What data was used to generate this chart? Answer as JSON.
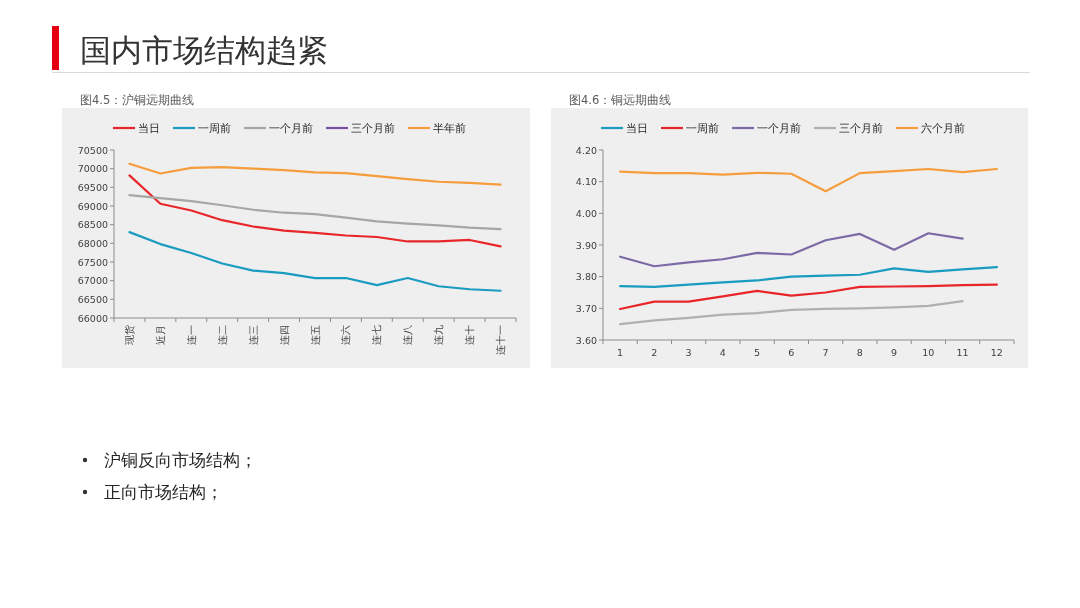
{
  "chart_data": [
    {
      "type": "line",
      "title": "图4.5：沪铜远期曲线",
      "categories": [
        "现货",
        "近月",
        "连一",
        "连二",
        "连三",
        "连四",
        "连五",
        "连六",
        "连七",
        "连八",
        "连九",
        "连十",
        "连十一"
      ],
      "ylim": [
        66000,
        70500
      ],
      "yticks": [
        66000,
        66500,
        67000,
        67500,
        68000,
        68500,
        69000,
        69500,
        70000,
        70500
      ],
      "legend": "top",
      "series": [
        {
          "name": "当日",
          "color": "#e8262a",
          "values": [
            69820,
            69060,
            68880,
            68620,
            68450,
            68340,
            68280,
            68210,
            68170,
            68050,
            68050,
            68090,
            67920
          ]
        },
        {
          "name": "一周前",
          "color": "#1a9bc0",
          "values": [
            68300,
            67980,
            67740,
            67460,
            67270,
            67200,
            67070,
            67070,
            66880,
            67070,
            66850,
            66770,
            66730
          ]
        },
        {
          "name": "一个月前",
          "color": "#a6a6a6",
          "values": [
            69290,
            69210,
            69130,
            69020,
            68900,
            68820,
            68780,
            68690,
            68590,
            68530,
            68480,
            68420,
            68380
          ]
        },
        {
          "name": "三个月前",
          "color": "#7a4fa8",
          "values": [
            null,
            null,
            null,
            null,
            null,
            null,
            null,
            null,
            null,
            null,
            null,
            null,
            null
          ]
        },
        {
          "name": "半年前",
          "color": "#f59d3d",
          "values": [
            70130,
            69870,
            70020,
            70040,
            70000,
            69960,
            69900,
            69880,
            69800,
            69720,
            69650,
            69620,
            69570
          ]
        }
      ]
    },
    {
      "type": "line",
      "title": "图4.6：铜远期曲线",
      "categories": [
        "1",
        "2",
        "3",
        "4",
        "5",
        "6",
        "7",
        "8",
        "9",
        "10",
        "11",
        "12"
      ],
      "ylim": [
        3.6,
        4.2
      ],
      "yticks": [
        {
          "value": 3.6,
          "label": "3.60"
        },
        {
          "value": 3.7,
          "label": "3.70"
        },
        {
          "value": 3.8,
          "label": "3.80"
        },
        {
          "value": 3.9,
          "label": "3.90"
        },
        {
          "value": 4.0,
          "label": "4.00"
        },
        {
          "value": 4.1,
          "label": "4.10"
        },
        {
          "value": 4.2,
          "label": "4.20"
        }
      ],
      "legend": "top",
      "series": [
        {
          "name": "当日",
          "color": "#1a9bc0",
          "values": [
            3.77,
            3.768,
            3.775,
            3.782,
            3.788,
            3.8,
            3.803,
            3.806,
            3.826,
            3.815,
            3.823,
            3.83
          ]
        },
        {
          "name": "一周前",
          "color": "#e8262a",
          "values": [
            3.698,
            3.721,
            3.721,
            3.738,
            3.755,
            3.74,
            3.75,
            3.768,
            3.769,
            3.77,
            3.773,
            3.775
          ]
        },
        {
          "name": "一个月前",
          "color": "#7b6aa5",
          "values": [
            3.863,
            3.833,
            3.845,
            3.855,
            3.875,
            3.87,
            3.915,
            3.935,
            3.885,
            3.937,
            3.92,
            null
          ]
        },
        {
          "name": "三个月前",
          "color": "#b0b0b0",
          "values": [
            3.65,
            3.662,
            3.67,
            3.68,
            3.685,
            3.695,
            3.698,
            3.7,
            3.703,
            3.708,
            3.723,
            null
          ]
        },
        {
          "name": "六个月前",
          "color": "#f59d3d",
          "values": [
            4.132,
            4.127,
            4.127,
            4.122,
            4.128,
            4.125,
            4.07,
            4.127,
            4.133,
            4.14,
            4.13,
            4.14
          ]
        }
      ]
    },
    {
      "type": "other",
      "title": "国内市场结构趋紧",
      "annotations": [
        "沪铜反向市场结构；",
        "正向市场结构；"
      ]
    }
  ]
}
